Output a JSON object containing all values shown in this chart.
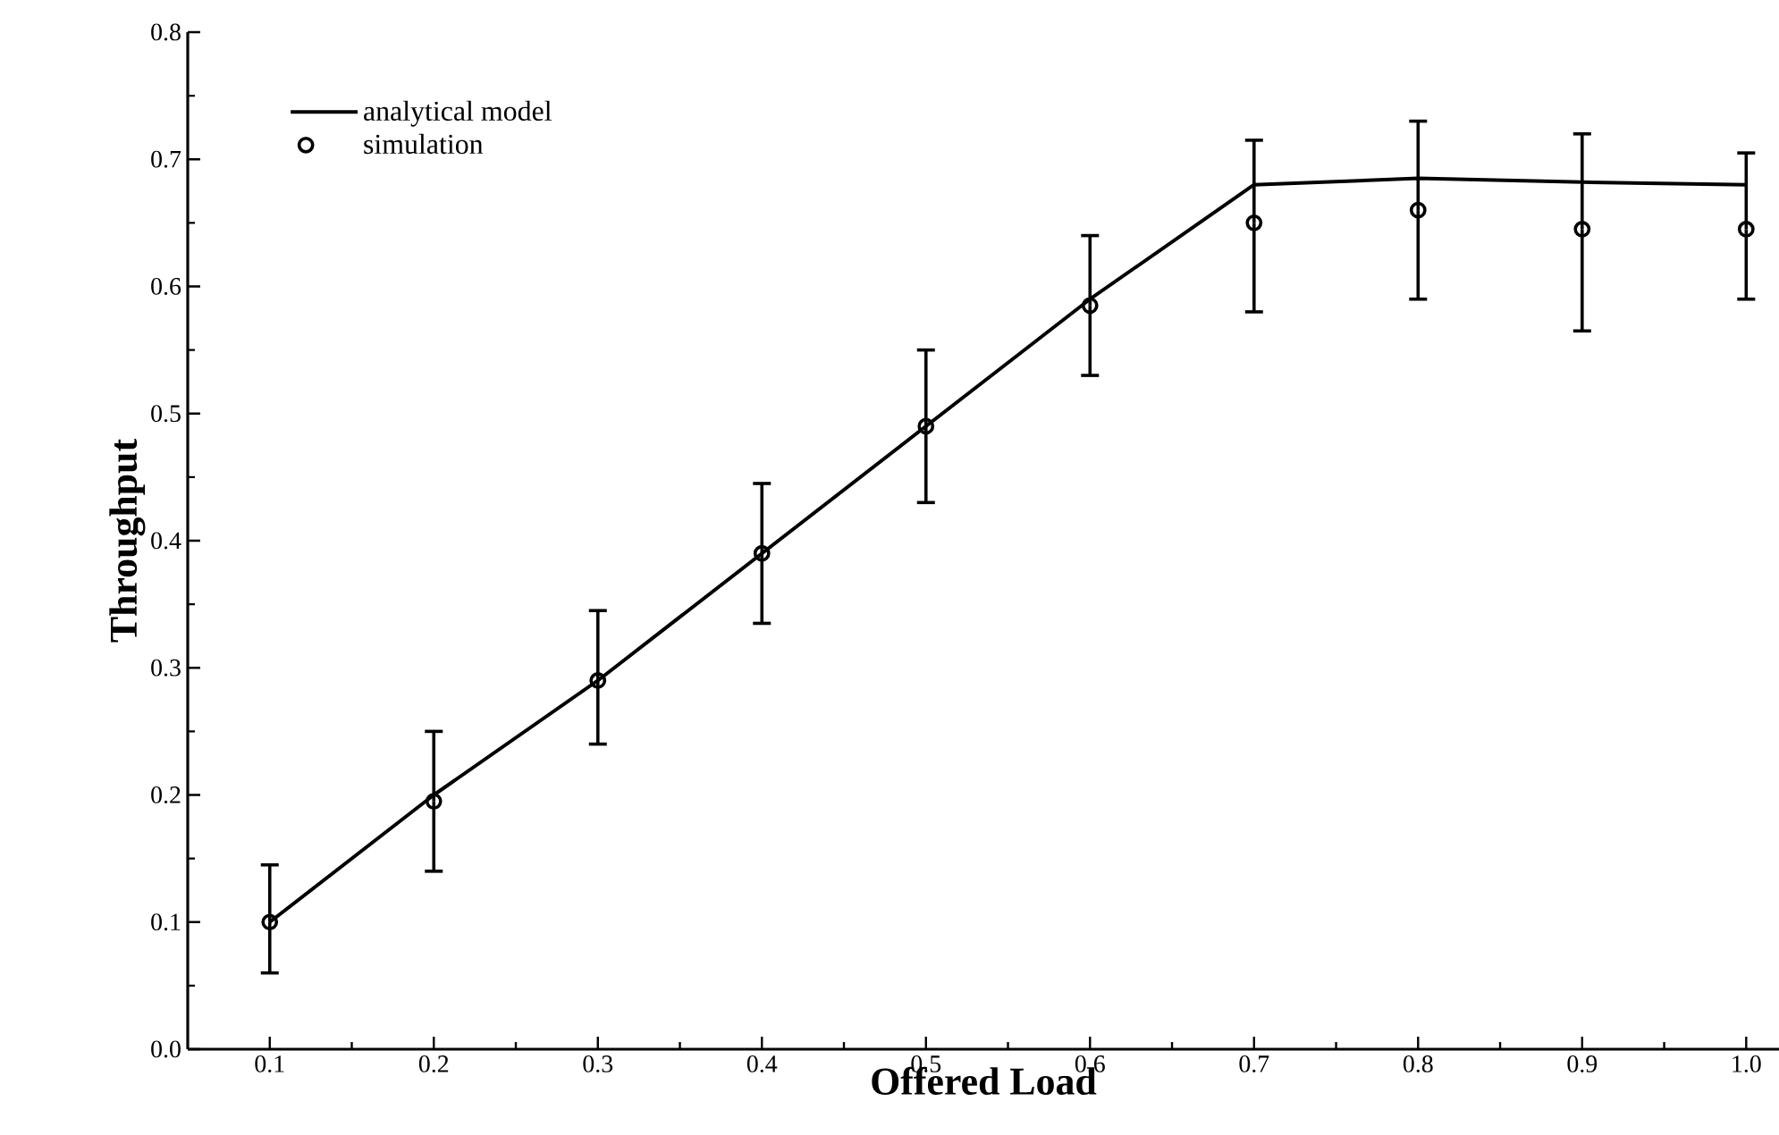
{
  "chart_data": {
    "type": "line",
    "xlabel": "Offered Load",
    "ylabel": "Throughput",
    "xlim": [
      0.05,
      1.02
    ],
    "xticks": [
      0.1,
      0.2,
      0.3,
      0.4,
      0.5,
      0.6,
      0.7,
      0.8,
      0.9,
      {
        "value": 1,
        "label": "1.0"
      }
    ],
    "ylim": [
      0,
      0.8
    ],
    "yticks": [
      {
        "value": 0,
        "label": "0.0"
      },
      0.1,
      0.2,
      0.3,
      0.4,
      0.5,
      0.6,
      0.7,
      0.8
    ],
    "legend": "top left",
    "series": [
      {
        "name": "analytical model",
        "color": "#000000",
        "marker": "none",
        "line_style": "solid",
        "x": [
          0.1,
          0.2,
          0.3,
          0.4,
          0.5,
          0.6,
          0.7,
          0.8,
          0.9,
          1.0
        ],
        "values": [
          0.1,
          0.2,
          0.29,
          0.39,
          0.49,
          0.59,
          0.68,
          0.685,
          0.682,
          0.68
        ]
      },
      {
        "name": "simulation",
        "type": "scatter",
        "color": "#000000",
        "marker": "circle",
        "x": [
          0.1,
          0.2,
          0.3,
          0.4,
          0.5,
          0.6,
          0.7,
          0.8,
          0.9,
          1.0
        ],
        "values": [
          0.1,
          0.195,
          0.29,
          0.39,
          0.49,
          0.585,
          0.65,
          0.66,
          0.645,
          0.645
        ],
        "errors": [
          [
            0.06,
            0.145
          ],
          [
            0.14,
            0.25
          ],
          [
            0.24,
            0.345
          ],
          [
            0.335,
            0.445
          ],
          [
            0.43,
            0.55
          ],
          [
            0.53,
            0.64
          ],
          [
            0.58,
            0.715
          ],
          [
            0.59,
            0.73
          ],
          [
            0.565,
            0.72
          ],
          [
            0.59,
            0.705
          ]
        ]
      }
    ]
  }
}
